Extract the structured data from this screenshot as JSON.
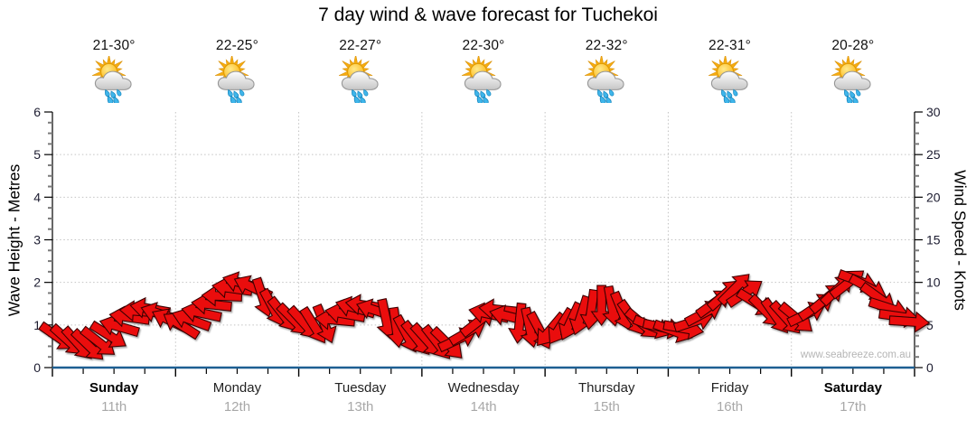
{
  "title": "7 day wind & wave forecast for Tuchekoi",
  "watermark": "www.seabreeze.com.au",
  "days": [
    {
      "name": "Sunday",
      "date": "11th",
      "temp": "21-30°",
      "bold": true,
      "icon": "sun-cloud-rain-icon"
    },
    {
      "name": "Monday",
      "date": "12th",
      "temp": "22-25°",
      "bold": false,
      "icon": "sun-cloud-rain-icon"
    },
    {
      "name": "Tuesday",
      "date": "13th",
      "temp": "22-27°",
      "bold": false,
      "icon": "sun-cloud-rain-icon"
    },
    {
      "name": "Wednesday",
      "date": "14th",
      "temp": "22-30°",
      "bold": false,
      "icon": "sun-cloud-rain-icon"
    },
    {
      "name": "Thursday",
      "date": "15th",
      "temp": "22-32°",
      "bold": false,
      "icon": "sun-cloud-rain-icon"
    },
    {
      "name": "Friday",
      "date": "16th",
      "temp": "22-31°",
      "bold": false,
      "icon": "sun-cloud-rain-icon"
    },
    {
      "name": "Saturday",
      "date": "17th",
      "temp": "20-28°",
      "bold": true,
      "icon": "sun-cloud-rain-icon"
    }
  ],
  "chart_data": {
    "type": "wind-arrows",
    "categories": [
      "Sunday",
      "Monday",
      "Tuesday",
      "Wednesday",
      "Thursday",
      "Friday",
      "Saturday"
    ],
    "slots_per_day": 12,
    "y_left": {
      "label": "Wave Height - Metres",
      "min": 0,
      "max": 6,
      "ticks": [
        0,
        1,
        2,
        3,
        4,
        5,
        6
      ]
    },
    "y_right": {
      "label": "Wind Speed - Knots",
      "min": 0,
      "max": 30,
      "ticks": [
        0,
        5,
        10,
        15,
        20,
        25,
        30
      ]
    },
    "grid": "dotted horizontal at whole metres, dotted vertical at day boundaries",
    "dir_convention": "screen degrees: 0=right, 90=down, 180=left, 270=up",
    "points_knots": [
      3.6,
      3.2,
      2.8,
      2.6,
      3.0,
      3.8,
      4.8,
      5.9,
      6.6,
      6.9,
      6.3,
      5.5,
      5.0,
      5.6,
      6.4,
      7.4,
      8.4,
      9.3,
      9.9,
      9.4,
      8.2,
      7.0,
      6.2,
      5.6,
      5.2,
      4.9,
      5.1,
      5.6,
      6.3,
      7.0,
      7.3,
      6.7,
      5.7,
      4.7,
      3.9,
      3.4,
      3.2,
      2.9,
      2.8,
      3.3,
      4.2,
      5.4,
      6.3,
      6.8,
      6.0,
      5.2,
      4.7,
      4.3,
      4.4,
      4.8,
      5.4,
      6.1,
      6.8,
      7.3,
      7.2,
      6.6,
      5.8,
      5.1,
      4.8,
      4.7,
      4.3,
      4.6,
      5.4,
      6.4,
      7.6,
      8.6,
      9.3,
      8.8,
      7.6,
      6.6,
      6.0,
      5.8,
      5.8,
      6.3,
      7.2,
      8.2,
      9.2,
      9.9,
      10.2,
      9.4,
      8.2,
      7.0,
      6.0,
      5.4
    ],
    "points_dir_deg": [
      35,
      42,
      48,
      44,
      38,
      32,
      196,
      188,
      184,
      190,
      198,
      206,
      212,
      200,
      192,
      186,
      182,
      188,
      196,
      205,
      72,
      62,
      52,
      45,
      48,
      58,
      68,
      185,
      190,
      196,
      188,
      198,
      78,
      82,
      62,
      52,
      48,
      52,
      45,
      335,
      330,
      322,
      192,
      186,
      194,
      96,
      78,
      62,
      130,
      122,
      115,
      108,
      98,
      90,
      80,
      68,
      55,
      40,
      22,
      12,
      20,
      10,
      342,
      332,
      324,
      318,
      315,
      326,
      32,
      45,
      55,
      48,
      40,
      334,
      326,
      320,
      316,
      322,
      20,
      28,
      36,
      18,
      8,
      4
    ]
  },
  "colors": {
    "arrow": "#ea0f0f",
    "arrow_outline": "#3c0000",
    "bottom_axis": "#1d5f92",
    "grid": "#c3c3c3",
    "tick_label": "#1c1c30",
    "date_text": "#a8a8a8"
  }
}
